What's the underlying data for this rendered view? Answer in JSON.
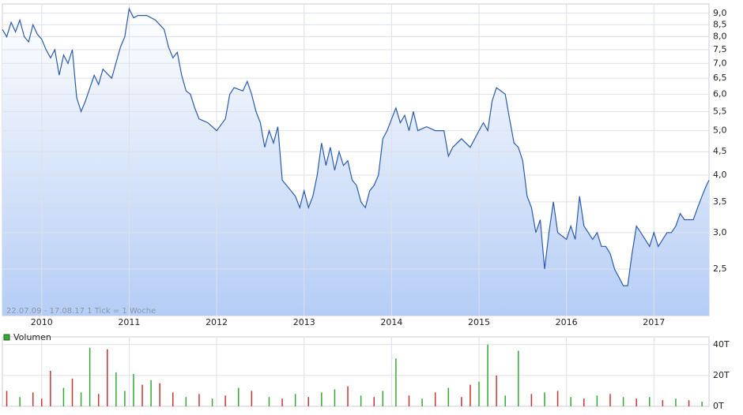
{
  "chart_data": [
    {
      "type": "area",
      "note": "22.07.09 - 17.08.17   1 Tick = 1 Woche",
      "color": "#2a5bb0",
      "log_scale": true,
      "grid": true,
      "x": [
        2009.55,
        2009.6,
        2009.65,
        2009.7,
        2009.75,
        2009.8,
        2009.85,
        2009.9,
        2009.95,
        2010.0,
        2010.05,
        2010.1,
        2010.15,
        2010.2,
        2010.25,
        2010.3,
        2010.35,
        2010.4,
        2010.45,
        2010.5,
        2010.6,
        2010.65,
        2010.7,
        2010.8,
        2010.9,
        2010.95,
        2011.0,
        2011.05,
        2011.1,
        2011.2,
        2011.3,
        2011.4,
        2011.45,
        2011.5,
        2011.55,
        2011.6,
        2011.65,
        2011.7,
        2011.75,
        2011.8,
        2011.9,
        2012.0,
        2012.1,
        2012.15,
        2012.2,
        2012.3,
        2012.35,
        2012.4,
        2012.45,
        2012.5,
        2012.55,
        2012.6,
        2012.65,
        2012.7,
        2012.75,
        2012.8,
        2012.85,
        2012.9,
        2012.95,
        2013.0,
        2013.05,
        2013.1,
        2013.15,
        2013.2,
        2013.25,
        2013.3,
        2013.35,
        2013.4,
        2013.45,
        2013.5,
        2013.55,
        2013.6,
        2013.65,
        2013.7,
        2013.75,
        2013.8,
        2013.85,
        2013.9,
        2013.95,
        2014.0,
        2014.05,
        2014.1,
        2014.15,
        2014.2,
        2014.25,
        2014.3,
        2014.4,
        2014.5,
        2014.6,
        2014.65,
        2014.7,
        2014.8,
        2014.9,
        2015.0,
        2015.05,
        2015.1,
        2015.15,
        2015.2,
        2015.3,
        2015.35,
        2015.4,
        2015.45,
        2015.5,
        2015.55,
        2015.6,
        2015.65,
        2015.7,
        2015.75,
        2015.8,
        2015.85,
        2015.9,
        2016.0,
        2016.05,
        2016.1,
        2016.15,
        2016.2,
        2016.25,
        2016.3,
        2016.35,
        2016.4,
        2016.45,
        2016.5,
        2016.55,
        2016.6,
        2016.65,
        2016.7,
        2016.75,
        2016.8,
        2016.85,
        2016.9,
        2016.95,
        2017.0,
        2017.05,
        2017.1,
        2017.15,
        2017.2,
        2017.25,
        2017.3,
        2017.35,
        2017.4,
        2017.45,
        2017.5,
        2017.55,
        2017.6,
        2017.63
      ],
      "values": [
        8.3,
        8.0,
        8.6,
        8.2,
        8.7,
        8.0,
        7.8,
        8.5,
        8.1,
        7.9,
        7.5,
        7.2,
        7.5,
        6.6,
        7.3,
        7.0,
        7.5,
        5.9,
        5.5,
        5.8,
        6.6,
        6.3,
        6.8,
        6.5,
        7.6,
        8.0,
        9.2,
        8.8,
        8.9,
        8.9,
        8.7,
        8.3,
        7.6,
        7.2,
        7.4,
        6.6,
        6.1,
        6.0,
        5.6,
        5.3,
        5.2,
        5.0,
        5.3,
        6.0,
        6.2,
        6.1,
        6.4,
        6.0,
        5.5,
        5.2,
        4.6,
        5.0,
        4.7,
        5.1,
        3.9,
        3.8,
        3.7,
        3.6,
        3.4,
        3.7,
        3.4,
        3.6,
        4.0,
        4.7,
        4.2,
        4.6,
        4.1,
        4.5,
        4.2,
        4.3,
        3.9,
        3.8,
        3.5,
        3.4,
        3.7,
        3.8,
        4.0,
        4.8,
        5.0,
        5.3,
        5.6,
        5.2,
        5.4,
        5.0,
        5.5,
        5.0,
        5.1,
        5.0,
        5.0,
        4.4,
        4.6,
        4.8,
        4.6,
        5.0,
        5.2,
        5.0,
        5.8,
        6.2,
        6.0,
        5.3,
        4.7,
        4.6,
        4.3,
        3.6,
        3.4,
        3.0,
        3.2,
        2.5,
        3.0,
        3.5,
        3.0,
        2.9,
        3.1,
        2.9,
        3.6,
        3.1,
        3.0,
        2.9,
        3.0,
        2.8,
        2.8,
        2.7,
        2.5,
        2.4,
        2.3,
        2.3,
        2.7,
        3.1,
        3.0,
        2.9,
        2.8,
        3.0,
        2.8,
        2.9,
        3.0,
        3.0,
        3.1,
        3.3,
        3.2,
        3.2,
        3.2,
        3.4,
        3.6,
        3.8,
        3.9
      ],
      "xlim": [
        2009.55,
        2017.63
      ],
      "xticks": [
        2010,
        2011,
        2012,
        2013,
        2014,
        2015,
        2016,
        2017
      ],
      "ylim": [
        1.98,
        9.43
      ],
      "yticks": [
        {
          "value": 2.5,
          "label": "2,5"
        },
        {
          "value": 3.0,
          "label": "3,0"
        },
        {
          "value": 3.5,
          "label": "3,5"
        },
        {
          "value": 4.0,
          "label": "4,0"
        },
        {
          "value": 4.5,
          "label": "4,5"
        },
        {
          "value": 5.0,
          "label": "5,0"
        },
        {
          "value": 5.5,
          "label": "5,5"
        },
        {
          "value": 6.0,
          "label": "6,0"
        },
        {
          "value": 6.5,
          "label": "6,5"
        },
        {
          "value": 7.0,
          "label": "7,0"
        },
        {
          "value": 7.5,
          "label": "7,5"
        },
        {
          "value": 8.0,
          "label": "8,0"
        },
        {
          "value": 8.5,
          "label": "8,5"
        },
        {
          "value": 9.0,
          "label": "9,0"
        }
      ]
    },
    {
      "type": "bar",
      "legend": "Volumen",
      "legend_color": "#33aa33",
      "x": [
        2009.6,
        2009.75,
        2009.9,
        2010.0,
        2010.1,
        2010.25,
        2010.35,
        2010.45,
        2010.55,
        2010.65,
        2010.75,
        2010.85,
        2010.95,
        2011.05,
        2011.15,
        2011.25,
        2011.35,
        2011.5,
        2011.65,
        2011.8,
        2011.95,
        2012.1,
        2012.25,
        2012.4,
        2012.6,
        2012.75,
        2012.9,
        2013.05,
        2013.2,
        2013.35,
        2013.5,
        2013.65,
        2013.8,
        2013.9,
        2014.05,
        2014.2,
        2014.35,
        2014.5,
        2014.65,
        2014.8,
        2014.9,
        2015.0,
        2015.1,
        2015.2,
        2015.3,
        2015.45,
        2015.6,
        2015.75,
        2015.9,
        2016.05,
        2016.2,
        2016.35,
        2016.5,
        2016.65,
        2016.8,
        2016.95,
        2017.1,
        2017.25,
        2017.4,
        2017.55
      ],
      "values": [
        10,
        6,
        9,
        5,
        23,
        12,
        18,
        9,
        38,
        8,
        37,
        22,
        10,
        21,
        14,
        17,
        15,
        9,
        6,
        8,
        5,
        7,
        12,
        10,
        6,
        5,
        8,
        6,
        9,
        11,
        13,
        7,
        6,
        10,
        31,
        7,
        5,
        9,
        12,
        6,
        14,
        16,
        40,
        20,
        7,
        36,
        8,
        9,
        10,
        6,
        5,
        7,
        8,
        6,
        5,
        6,
        4,
        5,
        4,
        3
      ],
      "colors": [
        "#cc3333",
        "#33aa33",
        "#cc3333",
        "#cc3333",
        "#cc3333",
        "#33aa33",
        "#cc3333",
        "#33aa33",
        "#33aa33",
        "#cc3333",
        "#cc3333",
        "#33aa33",
        "#33aa33",
        "#33aa33",
        "#cc3333",
        "#33aa33",
        "#cc3333",
        "#cc3333",
        "#33aa33",
        "#cc3333",
        "#33aa33",
        "#cc3333",
        "#33aa33",
        "#cc3333",
        "#33aa33",
        "#cc3333",
        "#33aa33",
        "#cc3333",
        "#33aa33",
        "#33aa33",
        "#cc3333",
        "#33aa33",
        "#cc3333",
        "#33aa33",
        "#33aa33",
        "#cc3333",
        "#33aa33",
        "#cc3333",
        "#33aa33",
        "#cc3333",
        "#cc3333",
        "#33aa33",
        "#33aa33",
        "#cc3333",
        "#33aa33",
        "#33aa33",
        "#cc3333",
        "#33aa33",
        "#cc3333",
        "#33aa33",
        "#cc3333",
        "#33aa33",
        "#cc3333",
        "#33aa33",
        "#cc3333",
        "#33aa33",
        "#cc3333",
        "#33aa33",
        "#cc3333",
        "#33aa33"
      ],
      "ylim": [
        0,
        45
      ],
      "yticks": [
        {
          "value": 0,
          "label": "0T"
        },
        {
          "value": 20,
          "label": "20T"
        },
        {
          "value": 40,
          "label": "40T"
        }
      ]
    }
  ]
}
